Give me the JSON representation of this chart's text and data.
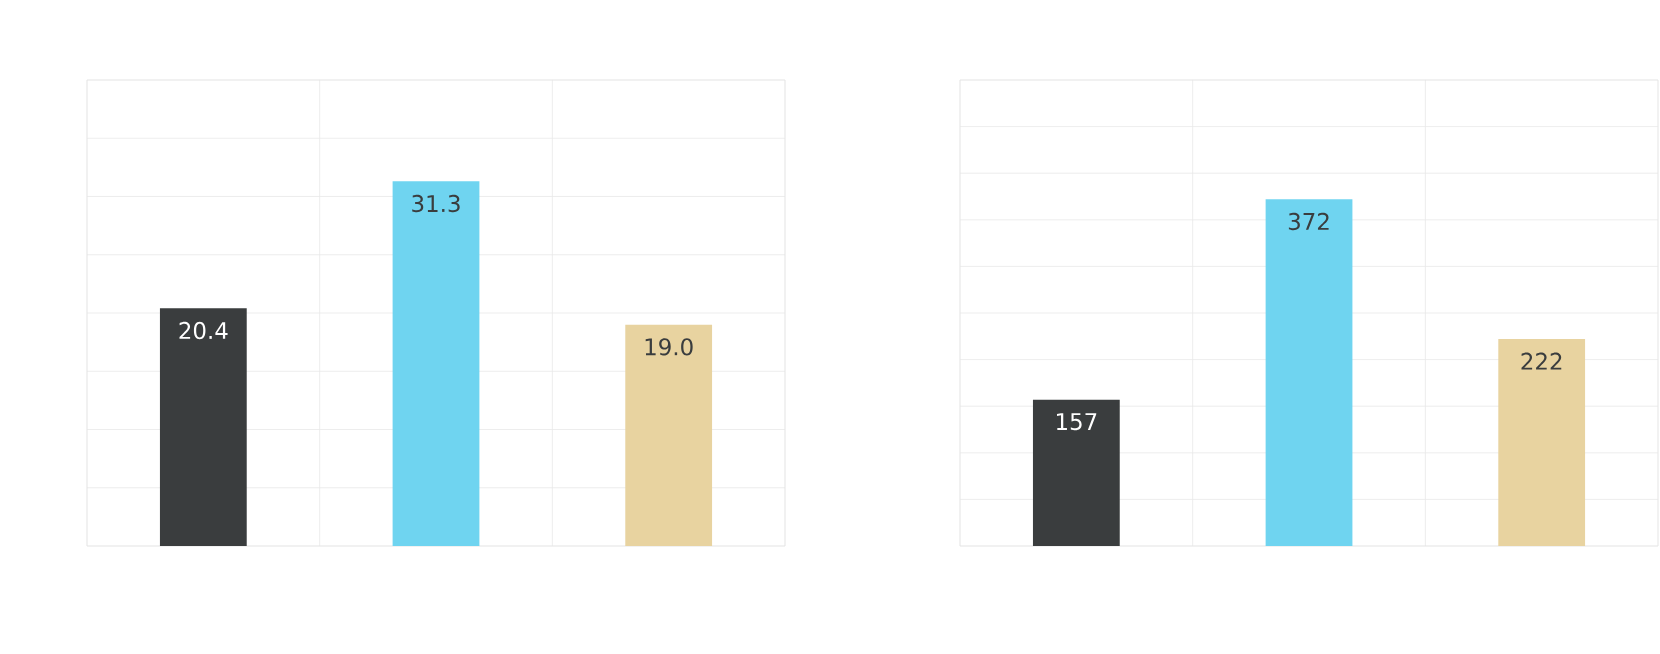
{
  "chart_data": [
    {
      "type": "bar",
      "categories": [
        null,
        null,
        null
      ],
      "values": [
        20.4,
        31.3,
        19.0
      ],
      "value_labels": [
        "20.4",
        "31.3",
        "19.0"
      ],
      "colors": [
        "#3a3d3e",
        "#6fd4f0",
        "#e8d3a0"
      ],
      "ylim": [
        0,
        40
      ],
      "yticks": [
        {
          "value": 0,
          "label": null
        },
        {
          "value": 5,
          "label": null
        },
        {
          "value": 10,
          "label": null
        },
        {
          "value": 15,
          "label": null
        },
        {
          "value": 20,
          "label": null
        },
        {
          "value": 25,
          "label": null
        },
        {
          "value": 30,
          "label": null
        },
        {
          "value": 35,
          "label": null
        },
        {
          "value": 40,
          "label": null
        }
      ],
      "grid": true
    },
    {
      "type": "bar",
      "categories": [
        null,
        null,
        null
      ],
      "values": [
        157,
        372,
        222
      ],
      "value_labels": [
        "157",
        "372",
        "222"
      ],
      "colors": [
        "#3a3d3e",
        "#6fd4f0",
        "#e8d3a0"
      ],
      "ylim": [
        0,
        500
      ],
      "yticks": [
        {
          "value": 0,
          "label": null
        },
        {
          "value": 50,
          "label": null
        },
        {
          "value": 100,
          "label": null
        },
        {
          "value": 150,
          "label": null
        },
        {
          "value": 200,
          "label": null
        },
        {
          "value": 250,
          "label": null
        },
        {
          "value": 300,
          "label": null
        },
        {
          "value": 350,
          "label": null
        },
        {
          "value": 400,
          "label": null
        },
        {
          "value": 450,
          "label": null
        },
        {
          "value": 500,
          "label": null
        }
      ],
      "grid": true
    }
  ]
}
